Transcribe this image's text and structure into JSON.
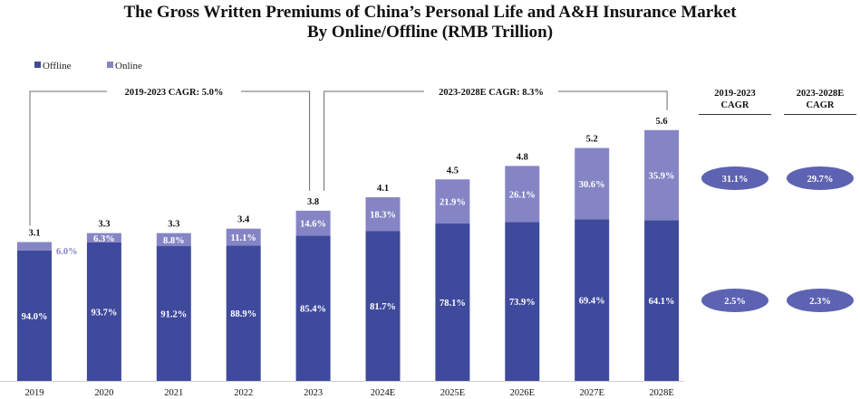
{
  "title_line1": "The Gross Written Premiums of China’s Personal Life and A&H Insurance Market",
  "title_line2": "By Online/Offline (RMB Trillion)",
  "colors": {
    "offline": "#3f4a9c",
    "online": "#8585c5",
    "pill": "#5d63b2",
    "line": "#6b6b6b"
  },
  "chart_data": {
    "type": "bar",
    "stacked": true,
    "categories": [
      "2019",
      "2020",
      "2021",
      "2022",
      "2023",
      "2024E",
      "2025E",
      "2026E",
      "2027E",
      "2028E"
    ],
    "totals": [
      3.1,
      3.3,
      3.3,
      3.4,
      3.8,
      4.1,
      4.5,
      4.8,
      5.2,
      5.6
    ],
    "total_labels": [
      "3.1",
      "3.3",
      "3.3",
      "3.4",
      "3.8",
      "4.1",
      "4.5",
      "4.8",
      "5.2",
      "5.6"
    ],
    "series": [
      {
        "name": "Offline",
        "share_pct": [
          94.0,
          93.7,
          91.2,
          88.9,
          85.4,
          81.7,
          78.1,
          73.9,
          69.4,
          64.1
        ],
        "labels": [
          "94.0%",
          "93.7%",
          "91.2%",
          "88.9%",
          "85.4%",
          "81.7%",
          "78.1%",
          "73.9%",
          "69.4%",
          "64.1%"
        ]
      },
      {
        "name": "Online",
        "share_pct": [
          6.0,
          6.3,
          8.8,
          11.1,
          14.6,
          18.3,
          21.9,
          26.1,
          30.6,
          35.9
        ],
        "labels": [
          "6.0%",
          "6.3%",
          "8.8%",
          "11.1%",
          "14.6%",
          "18.3%",
          "21.9%",
          "26.1%",
          "30.6%",
          "35.9%"
        ]
      }
    ],
    "legend": [
      "Offline",
      "Online"
    ],
    "legend_position": "top-left",
    "ylim": [
      0,
      5.6
    ]
  },
  "cagr_brackets": [
    {
      "label": "2019-2023 CAGR: 5.0%",
      "from": 0,
      "to": 4
    },
    {
      "label": "2023-2028E CAGR: 8.3%",
      "from": 4,
      "to": 9
    }
  ],
  "cagr_table": {
    "headers": [
      [
        "2019-2023",
        "CAGR"
      ],
      [
        "2023-2028E",
        "CAGR"
      ]
    ],
    "online": [
      "31.1%",
      "29.7%"
    ],
    "offline": [
      "2.5%",
      "2.3%"
    ]
  }
}
